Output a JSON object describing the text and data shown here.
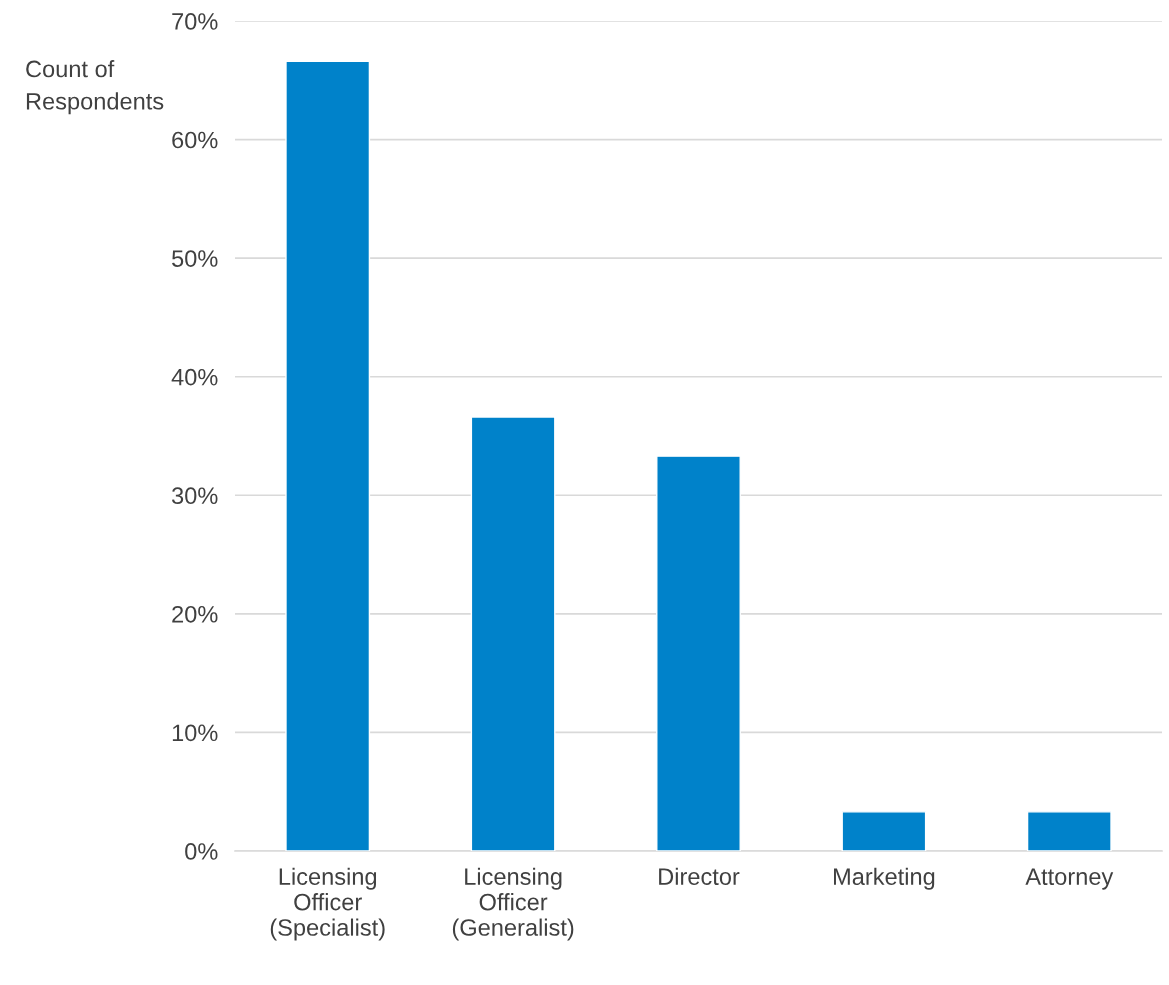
{
  "chart_data": {
    "type": "bar",
    "ylabel": "Count of\nRespondents",
    "categories": [
      "Licensing\nOfficer\n(Specialist)",
      "Licensing\nOfficer\n(Generalist)",
      "Director",
      "Marketing",
      "Attorney"
    ],
    "values": [
      66.6,
      36.6,
      33.3,
      3.3,
      3.3
    ],
    "color": "#0082ca",
    "ylim": [
      0,
      70
    ],
    "yticks": [
      {
        "value": 0,
        "label": "0%"
      },
      {
        "value": 10,
        "label": "10%"
      },
      {
        "value": 20,
        "label": "20%"
      },
      {
        "value": 30,
        "label": "30%"
      },
      {
        "value": 40,
        "label": "40%"
      },
      {
        "value": 50,
        "label": "50%"
      },
      {
        "value": 60,
        "label": "60%"
      },
      {
        "value": 70,
        "label": "70%"
      }
    ],
    "grid": "y",
    "legend": false
  }
}
